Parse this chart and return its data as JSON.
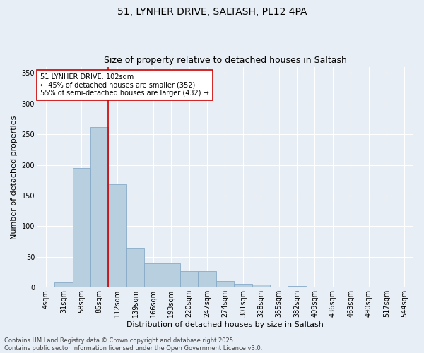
{
  "title_line1": "51, LYNHER DRIVE, SALTASH, PL12 4PA",
  "title_line2": "Size of property relative to detached houses in Saltash",
  "xlabel": "Distribution of detached houses by size in Saltash",
  "ylabel": "Number of detached properties",
  "bar_color": "#b8cfe0",
  "bar_edge_color": "#88aac8",
  "bar_edge_width": 0.6,
  "vline_color": "#cc0000",
  "vline_x": 3.5,
  "annotation_text": "51 LYNHER DRIVE: 102sqm\n← 45% of detached houses are smaller (352)\n55% of semi-detached houses are larger (432) →",
  "annotation_box_color": "#ffffff",
  "annotation_box_edge": "#cc0000",
  "bins": [
    "4sqm",
    "31sqm",
    "58sqm",
    "85sqm",
    "112sqm",
    "139sqm",
    "166sqm",
    "193sqm",
    "220sqm",
    "247sqm",
    "274sqm",
    "301sqm",
    "328sqm",
    "355sqm",
    "382sqm",
    "409sqm",
    "436sqm",
    "463sqm",
    "490sqm",
    "517sqm",
    "544sqm"
  ],
  "values": [
    0,
    8,
    195,
    262,
    168,
    65,
    40,
    40,
    27,
    27,
    11,
    6,
    5,
    0,
    3,
    0,
    0,
    0,
    0,
    1,
    0
  ],
  "ylim": [
    0,
    360
  ],
  "yticks": [
    0,
    50,
    100,
    150,
    200,
    250,
    300,
    350
  ],
  "background_color": "#e8eef5",
  "plot_bg_color": "#e8eef5",
  "grid_color": "#ffffff",
  "footer_text": "Contains HM Land Registry data © Crown copyright and database right 2025.\nContains public sector information licensed under the Open Government Licence v3.0.",
  "title_fontsize": 10,
  "subtitle_fontsize": 9,
  "xlabel_fontsize": 8,
  "ylabel_fontsize": 8,
  "tick_fontsize": 7,
  "footer_fontsize": 6,
  "annotation_fontsize": 7
}
